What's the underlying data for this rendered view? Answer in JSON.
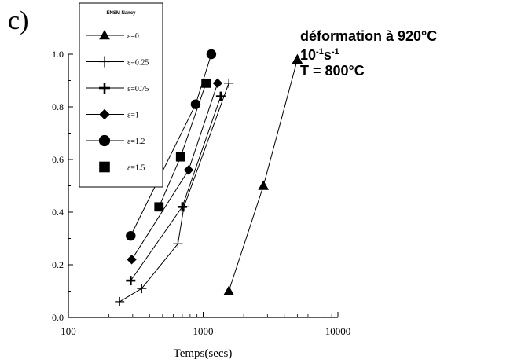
{
  "panel_label": "c)",
  "annotations": {
    "line1": "déformation à 920°C",
    "line2_base": "10",
    "line2_exp1": "-1",
    "line2_s": "s",
    "line2_exp2": "-1",
    "line3": "T = 800°C"
  },
  "chart_data": {
    "type": "line",
    "xlabel": "Temps(secs)",
    "ylabel": "",
    "xscale": "log",
    "xlim": [
      100,
      10000
    ],
    "ylim": [
      0,
      1.0
    ],
    "x_ticks": [
      100,
      1000,
      10000
    ],
    "x_tick_labels": [
      "100",
      "1000",
      "10000"
    ],
    "y_ticks": [
      0,
      0.2,
      0.4,
      0.6,
      0.8,
      1.0
    ],
    "y_tick_labels": [
      "0.0",
      "0.2",
      "0.4",
      "0.6",
      "0.8",
      "1.0"
    ],
    "legend_title": "ENSM Nancy",
    "legend_position": "top-left",
    "grid": false,
    "series": [
      {
        "name": "ε=0",
        "marker": "triangle",
        "points": [
          [
            1550,
            0.1
          ],
          [
            2800,
            0.5
          ],
          [
            5000,
            0.98
          ]
        ]
      },
      {
        "name": "ε=0.25",
        "marker": "plus-thin",
        "points": [
          [
            240,
            0.06
          ],
          [
            350,
            0.11
          ],
          [
            650,
            0.28
          ],
          [
            720,
            0.42
          ],
          [
            1550,
            0.89
          ]
        ]
      },
      {
        "name": "ε=0.75",
        "marker": "plus-bold",
        "points": [
          [
            290,
            0.14
          ],
          [
            700,
            0.42
          ],
          [
            1350,
            0.84
          ]
        ]
      },
      {
        "name": "ε=1",
        "marker": "diamond",
        "points": [
          [
            295,
            0.22
          ],
          [
            780,
            0.56
          ],
          [
            1280,
            0.89
          ]
        ]
      },
      {
        "name": "ε=1.2",
        "marker": "circle",
        "points": [
          [
            290,
            0.31
          ],
          [
            880,
            0.81
          ],
          [
            1150,
            1.0
          ]
        ]
      },
      {
        "name": "ε=1.5",
        "marker": "square",
        "points": [
          [
            470,
            0.42
          ],
          [
            680,
            0.61
          ],
          [
            1050,
            0.89
          ]
        ]
      }
    ]
  }
}
